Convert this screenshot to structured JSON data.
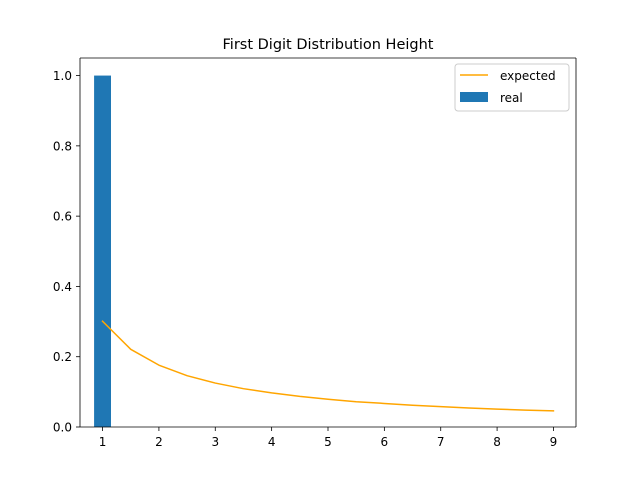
{
  "chart_data": {
    "type": "bar+line",
    "title": "First Digit Distribution Height",
    "xlabel": "",
    "ylabel": "",
    "xlim": [
      0.6,
      9.4
    ],
    "ylim": [
      0.0,
      1.05
    ],
    "xticks": [
      1,
      2,
      3,
      4,
      5,
      6,
      7,
      8,
      9
    ],
    "yticks": [
      0.0,
      0.2,
      0.4,
      0.6,
      0.8,
      1.0
    ],
    "xtick_labels": [
      "1",
      "2",
      "3",
      "4",
      "5",
      "6",
      "7",
      "8",
      "9"
    ],
    "ytick_labels": [
      "0.0",
      "0.2",
      "0.4",
      "0.6",
      "0.8",
      "1.0"
    ],
    "grid": false,
    "legend_position": "top-right",
    "series": [
      {
        "name": "expected",
        "type": "line",
        "color": "#ffa500",
        "x": [
          1,
          1.5,
          2,
          2.5,
          3,
          3.5,
          4,
          4.5,
          5,
          5.5,
          6,
          6.5,
          7,
          7.5,
          8,
          8.5,
          9
        ],
        "y": [
          0.301,
          0.221,
          0.176,
          0.146,
          0.125,
          0.109,
          0.097,
          0.087,
          0.079,
          0.072,
          0.067,
          0.062,
          0.058,
          0.054,
          0.051,
          0.048,
          0.046
        ]
      },
      {
        "name": "real",
        "type": "bar",
        "color": "#1f77b4",
        "x": [
          1
        ],
        "y": [
          1.0
        ],
        "bar_width": 0.3
      }
    ]
  }
}
